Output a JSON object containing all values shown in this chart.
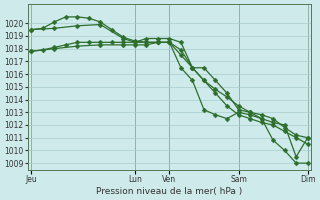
{
  "title": "Pression niveau de la mer( hPa )",
  "bg_color": "#ceeaea",
  "grid_color": "#aacccc",
  "line_color": "#2d6e2d",
  "ylim": [
    1008.5,
    1021.5
  ],
  "yticks": [
    1009,
    1010,
    1011,
    1012,
    1013,
    1014,
    1015,
    1016,
    1017,
    1018,
    1019,
    1020
  ],
  "xtick_labels": [
    "Jeu",
    "",
    "Lun",
    "Ven",
    "",
    "Sam",
    "",
    "Dim"
  ],
  "xtick_pos": [
    0,
    6,
    9,
    12,
    15,
    18,
    21,
    24
  ],
  "vlines": [
    0,
    9,
    12,
    18,
    24
  ],
  "vline_labels": [
    "Jeu",
    "Lun",
    "Ven",
    "Sam",
    "Dim"
  ],
  "line1_x": [
    0,
    1,
    2,
    3,
    4,
    5,
    6,
    7,
    8,
    9,
    10,
    11,
    12,
    13,
    14,
    15,
    16,
    17,
    18,
    19,
    20,
    21,
    22,
    23,
    24
  ],
  "line1_y": [
    1019.5,
    1019.6,
    1020.1,
    1020.5,
    1020.5,
    1020.4,
    1020.1,
    1019.5,
    1018.9,
    1018.6,
    1018.5,
    1018.5,
    1018.5,
    1017.9,
    1016.5,
    1015.5,
    1014.8,
    1014.2,
    1013.5,
    1013.0,
    1012.8,
    1012.5,
    1011.8,
    1011.2,
    1011.0
  ],
  "line2_x": [
    0,
    1,
    2,
    3,
    4,
    5,
    6,
    7,
    8,
    9,
    10,
    11,
    12,
    13,
    14,
    15,
    16,
    17,
    18,
    19,
    20,
    21,
    22,
    23,
    24
  ],
  "line2_y": [
    1017.8,
    1017.9,
    1018.1,
    1018.3,
    1018.5,
    1018.5,
    1018.5,
    1018.5,
    1018.5,
    1018.5,
    1018.8,
    1018.8,
    1018.8,
    1018.5,
    1016.5,
    1015.5,
    1014.5,
    1013.5,
    1012.8,
    1012.5,
    1012.2,
    1012.0,
    1011.5,
    1011.0,
    1010.5
  ],
  "line3_x": [
    0,
    2,
    4,
    6,
    8,
    9,
    10,
    11,
    12,
    13,
    14,
    15,
    16,
    17,
    18,
    19,
    20,
    21,
    22,
    23,
    24
  ],
  "line3_y": [
    1019.5,
    1019.6,
    1019.8,
    1019.9,
    1018.8,
    1018.5,
    1018.5,
    1018.5,
    1018.5,
    1016.5,
    1015.5,
    1013.2,
    1012.8,
    1012.5,
    1013.0,
    1012.8,
    1012.5,
    1010.8,
    1010.0,
    1009.0,
    1009.0
  ],
  "line4_x": [
    0,
    2,
    4,
    6,
    8,
    9,
    10,
    11,
    12,
    13,
    14,
    15,
    16,
    17,
    18,
    19,
    20,
    21,
    22,
    23,
    24
  ],
  "line4_y": [
    1017.8,
    1018.0,
    1018.2,
    1018.3,
    1018.3,
    1018.3,
    1018.3,
    1018.5,
    1018.5,
    1017.5,
    1016.5,
    1016.5,
    1015.5,
    1014.5,
    1013.2,
    1013.0,
    1012.5,
    1012.2,
    1012.0,
    1009.5,
    1011.0
  ],
  "marker_size": 2.5,
  "linewidth": 0.9,
  "marker": "D"
}
